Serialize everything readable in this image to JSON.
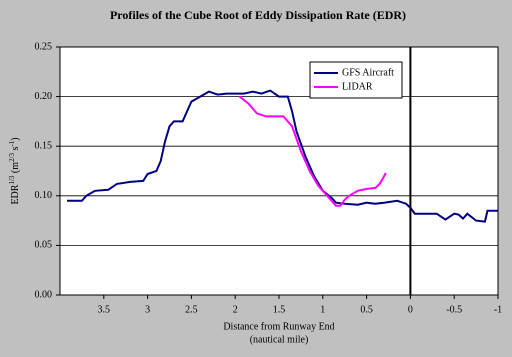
{
  "chart_data": {
    "type": "line",
    "title": "Profiles of the Cube Root of Eddy Dissipation Rate (EDR)",
    "xlabel": [
      "Distance from Runway End",
      "(nautical mile)"
    ],
    "ylabel": [
      "EDR",
      "1/3",
      " (m",
      "2/3",
      " s",
      "-1",
      ")"
    ],
    "xlim": [
      4,
      -1
    ],
    "xticks": [
      3.5,
      3,
      2.5,
      2,
      1.5,
      1,
      0.5,
      0,
      -0.5,
      -1
    ],
    "ylim": [
      0,
      0.25
    ],
    "yticks": [
      {
        "value": 0,
        "label": "0.00"
      },
      {
        "value": 0.05,
        "label": "0.05"
      },
      {
        "value": 0.1,
        "label": "0.10"
      },
      {
        "value": 0.15,
        "label": "0.15"
      },
      {
        "value": 0.2,
        "label": "0.20"
      },
      {
        "value": 0.25,
        "label": "0.25"
      }
    ],
    "grid": true,
    "vline_x": 0,
    "legend": "upper right",
    "series": [
      {
        "name": "GFS Aircraft",
        "color": "#000080",
        "x": [
          3.92,
          3.75,
          3.7,
          3.6,
          3.45,
          3.35,
          3.2,
          3.05,
          3.0,
          2.9,
          2.85,
          2.8,
          2.75,
          2.7,
          2.6,
          2.55,
          2.5,
          2.4,
          2.3,
          2.2,
          2.1,
          2.0,
          1.9,
          1.8,
          1.7,
          1.6,
          1.5,
          1.4,
          1.35,
          1.3,
          1.2,
          1.1,
          1.0,
          0.9,
          0.85,
          0.75,
          0.6,
          0.5,
          0.4,
          0.3,
          0.15,
          0.05,
          0.0,
          -0.05,
          -0.2,
          -0.3,
          -0.4,
          -0.5,
          -0.55,
          -0.6,
          -0.65,
          -0.75,
          -0.85,
          -0.88,
          -1.0
        ],
        "values": [
          0.095,
          0.095,
          0.1,
          0.105,
          0.106,
          0.112,
          0.114,
          0.115,
          0.122,
          0.125,
          0.135,
          0.155,
          0.17,
          0.175,
          0.175,
          0.185,
          0.195,
          0.2,
          0.205,
          0.202,
          0.203,
          0.203,
          0.203,
          0.205,
          0.203,
          0.206,
          0.2,
          0.2,
          0.185,
          0.165,
          0.14,
          0.12,
          0.105,
          0.098,
          0.093,
          0.092,
          0.091,
          0.093,
          0.092,
          0.093,
          0.095,
          0.092,
          0.088,
          0.082,
          0.082,
          0.082,
          0.076,
          0.082,
          0.081,
          0.077,
          0.082,
          0.075,
          0.074,
          0.085,
          0.085
        ]
      },
      {
        "name": "LIDAR",
        "color": "#ff00ff",
        "x": [
          1.95,
          1.85,
          1.75,
          1.65,
          1.45,
          1.35,
          1.25,
          1.15,
          1.05,
          0.95,
          0.9,
          0.85,
          0.8,
          0.75,
          0.7,
          0.6,
          0.5,
          0.4,
          0.35,
          0.28
        ],
        "values": [
          0.2,
          0.193,
          0.183,
          0.18,
          0.18,
          0.17,
          0.145,
          0.125,
          0.11,
          0.1,
          0.095,
          0.09,
          0.09,
          0.096,
          0.1,
          0.105,
          0.107,
          0.108,
          0.112,
          0.123
        ]
      }
    ]
  }
}
